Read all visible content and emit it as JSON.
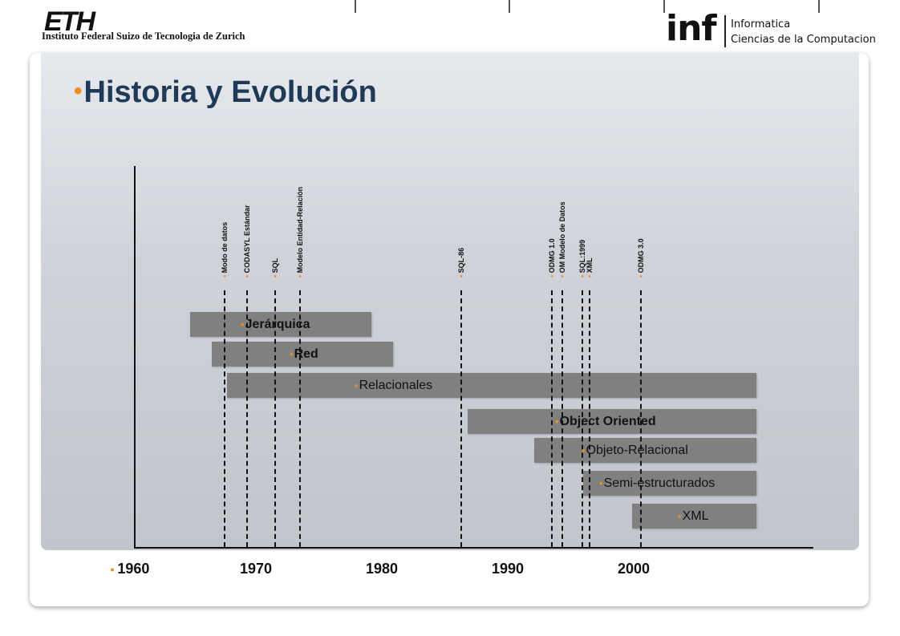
{
  "header": {
    "eth_logo": "ETH",
    "eth_subtitle": "Instituto Federal Suizo de Tecnologia de Zurich",
    "inf_logo": "inf",
    "inf_line1": "Informatica",
    "inf_line2": "Ciencias de la Computacion"
  },
  "slide": {
    "title": "Historia y Evolución"
  },
  "timeline": {
    "years": [
      "1960",
      "1970",
      "1980",
      "1990",
      "2000"
    ],
    "events": [
      {
        "label": "Modo de datos",
        "year": 1967.5
      },
      {
        "label": "CODASYL Estándar",
        "year": 1969.3
      },
      {
        "label": "SQL",
        "year": 1971.5
      },
      {
        "label": "Modelo Entidad-Relación",
        "year": 1973.5
      },
      {
        "label": "SQL-86",
        "year": 1986.3
      },
      {
        "label": "ODMG 1.0",
        "year": 1993.5
      },
      {
        "label": "OM Modelo de Datos",
        "year": 1994.3
      },
      {
        "label": "SQL:1999",
        "year": 1995.9
      },
      {
        "label": "XML",
        "year": 1996.5
      },
      {
        "label": "ODMG 3.0",
        "year": 2000.6
      }
    ],
    "bars": [
      {
        "label": "Jerárquica",
        "start": 1964.8,
        "end": 1979.2,
        "bold": true
      },
      {
        "label": "Red",
        "start": 1966.5,
        "end": 1980.9,
        "bold": true
      },
      {
        "label": "Relacionales",
        "start": 1967.7,
        "end": 2009.8,
        "bold": false
      },
      {
        "label": "Object Oriented",
        "start": 1986.8,
        "end": 2009.8,
        "bold": true
      },
      {
        "label": "Objeto-Relacional",
        "start": 1992.1,
        "end": 2009.8,
        "bold": false
      },
      {
        "label": "Semi-estructurados",
        "start": 1996.0,
        "end": 2009.8,
        "bold": false
      },
      {
        "label": "XML",
        "start": 1999.9,
        "end": 2009.8,
        "bold": false
      }
    ]
  },
  "colors": {
    "accent": "#f08c1e",
    "title": "#1e3a57",
    "bar": "#808080"
  }
}
